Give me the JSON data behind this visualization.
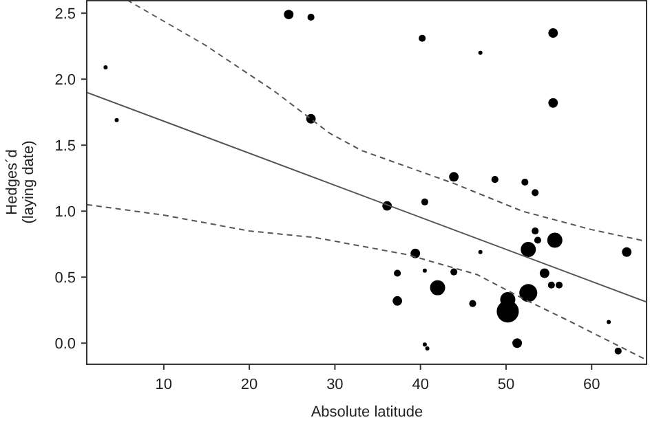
{
  "chart_data": {
    "type": "bubble",
    "xlabel": "Absolute latitude",
    "ylabel": "Hedges´d\n(laying date)",
    "xlim": [
      1,
      66.5
    ],
    "ylim": [
      -0.16,
      2.6
    ],
    "xticks": [
      10,
      20,
      30,
      40,
      50,
      60
    ],
    "yticks": [
      {
        "value": 0,
        "label": "0.0"
      },
      {
        "value": 0.5,
        "label": "0.5"
      },
      {
        "value": 1,
        "label": "1.0"
      },
      {
        "value": 1.5,
        "label": "1.5"
      },
      {
        "value": 2,
        "label": "2.0"
      },
      {
        "value": 2.5,
        "label": "2.5"
      }
    ],
    "grid": false,
    "series": [
      {
        "marker": "circle",
        "color": "#000000",
        "x": [
          3.2,
          4.5,
          24.6,
          27.2,
          27.2,
          40.2,
          55.5,
          47.0,
          55.5,
          43.9,
          48.7,
          52.2,
          53.4,
          36.1,
          40.5,
          53.4,
          53.7,
          55.7,
          52.6,
          64.1,
          39.4,
          47.0,
          37.3,
          40.5,
          43.9,
          54.5,
          55.3,
          56.2,
          42.0,
          52.6,
          50.2,
          37.3,
          46.1,
          50.2,
          62.0,
          51.3,
          40.5,
          40.8,
          63.1
        ],
        "values": [
          2.09,
          1.69,
          2.49,
          2.47,
          1.7,
          2.31,
          2.35,
          2.2,
          1.82,
          1.26,
          1.24,
          1.22,
          1.14,
          1.04,
          1.07,
          0.85,
          0.78,
          0.78,
          0.71,
          0.69,
          0.68,
          0.69,
          0.53,
          0.55,
          0.54,
          0.53,
          0.44,
          0.44,
          0.42,
          0.38,
          0.33,
          0.32,
          0.3,
          0.24,
          0.16,
          0.0,
          -0.01,
          -0.04,
          -0.06
        ],
        "sizes": [
          0.035,
          0.035,
          0.19,
          0.1,
          0.19,
          0.1,
          0.19,
          0.035,
          0.19,
          0.19,
          0.1,
          0.1,
          0.1,
          0.19,
          0.1,
          0.1,
          0.1,
          0.47,
          0.47,
          0.19,
          0.19,
          0.035,
          0.1,
          0.035,
          0.1,
          0.19,
          0.1,
          0.1,
          0.47,
          0.66,
          0.47,
          0.19,
          0.1,
          1,
          0.035,
          0.19,
          0.035,
          0.035,
          0.1
        ]
      },
      {
        "type": "line",
        "color": "#555555",
        "line_style": "solid",
        "x": [
          1,
          66.5
        ],
        "values": [
          1.9,
          0.31
        ]
      },
      {
        "type": "line",
        "color": "#555555",
        "line_style": "dashed",
        "x": [
          1,
          10,
          20,
          27.7,
          38.5,
          46.6,
          51.9,
          57.3,
          66.5
        ],
        "values": [
          1.05,
          0.97,
          0.85,
          0.8,
          0.67,
          0.52,
          0.34,
          0.17,
          -0.13
        ]
      },
      {
        "type": "line",
        "color": "#555555",
        "line_style": "dashed",
        "x": [
          5.7,
          14.8,
          22.9,
          29.4,
          33.1,
          43.9,
          51.9,
          60,
          66.5
        ],
        "values": [
          2.6,
          2.26,
          1.91,
          1.59,
          1.46,
          1.21,
          1.0,
          0.86,
          0.77
        ]
      }
    ]
  }
}
